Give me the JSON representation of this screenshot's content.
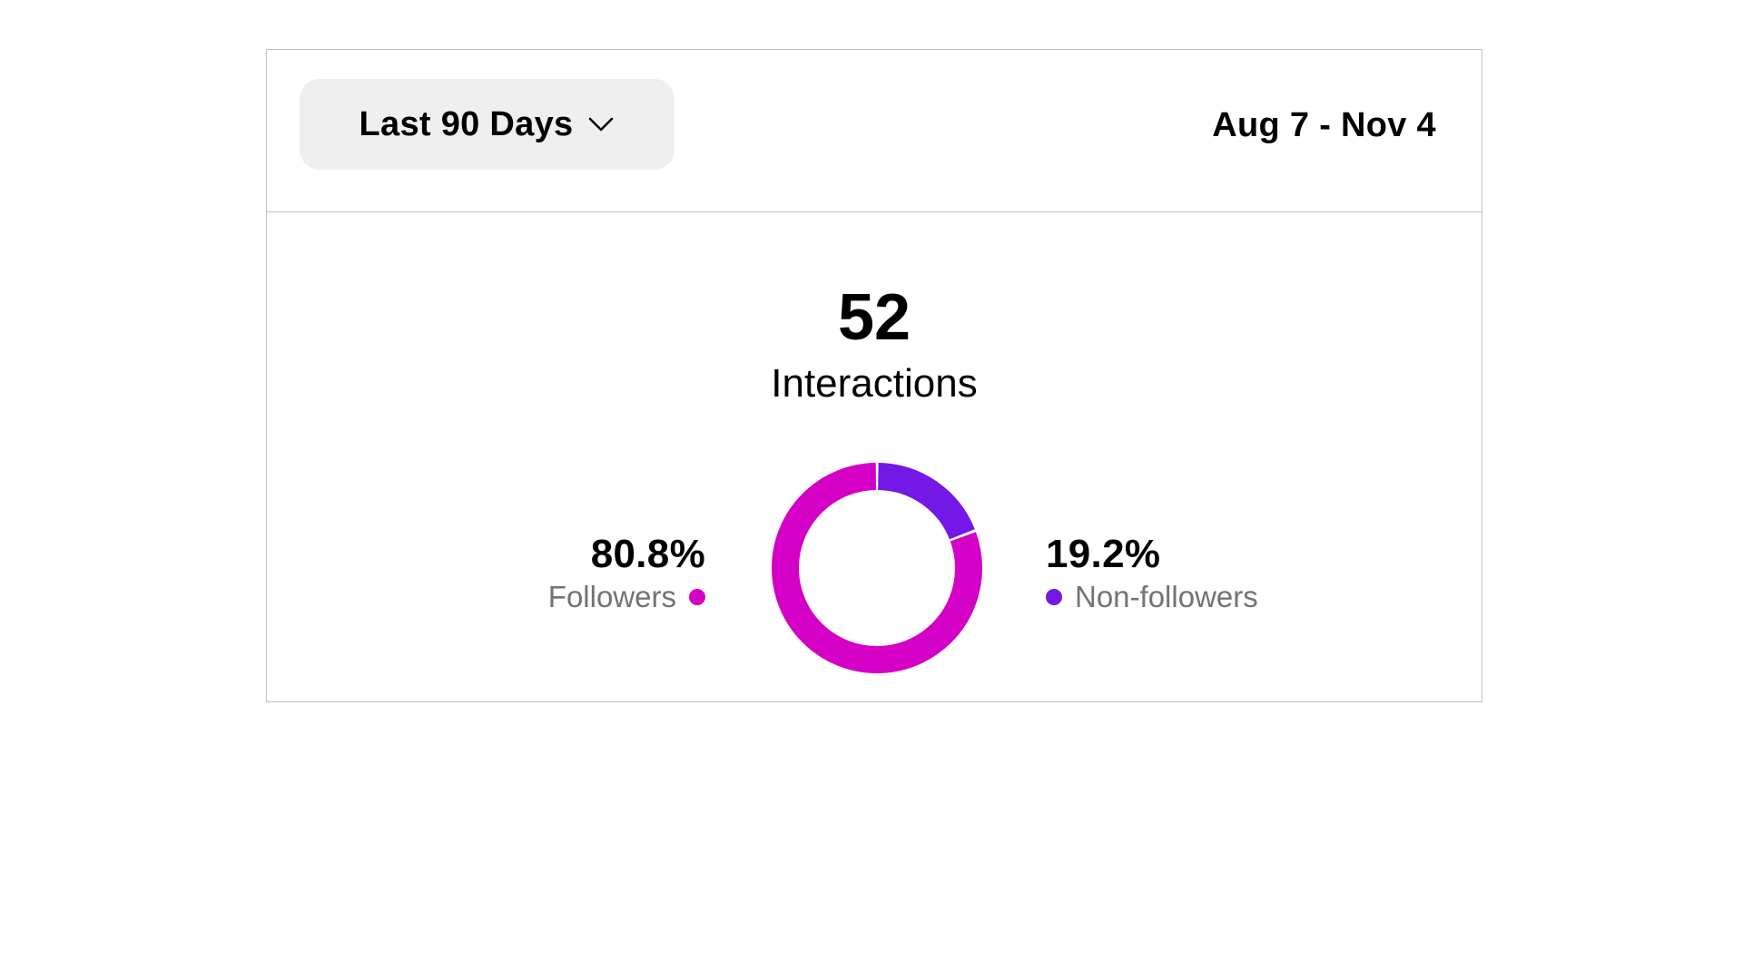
{
  "header": {
    "range_label": "Last 90 Days",
    "chevron_icon": "chevron-down-icon",
    "date_range": "Aug 7 - Nov 4"
  },
  "summary": {
    "total": "52",
    "label": "Interactions"
  },
  "chart_data": {
    "type": "pie",
    "categories": [
      "Followers",
      "Non-followers"
    ],
    "values": [
      80.8,
      19.2
    ],
    "value_labels": [
      "80.8%",
      "19.2%"
    ],
    "colors": [
      "#d400c6",
      "#7418e6"
    ]
  }
}
